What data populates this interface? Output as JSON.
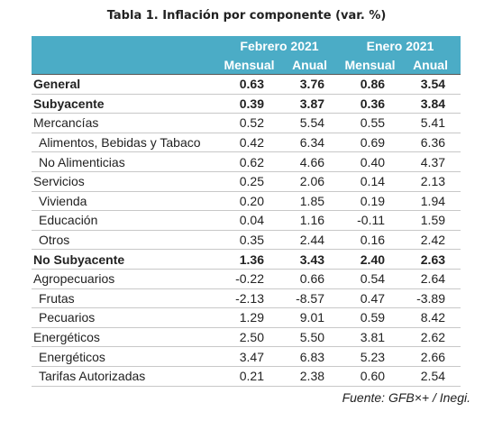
{
  "title": "Tabla 1. Inflación por componente (var. %)",
  "header": {
    "groups": [
      "Febrero 2021",
      "Enero 2021"
    ],
    "columns": [
      "Mensual",
      "Anual",
      "Mensual",
      "Anual"
    ]
  },
  "rows": [
    {
      "label": "General",
      "level": 0,
      "bold": true,
      "values": [
        "0.63",
        "3.76",
        "0.86",
        "3.54"
      ]
    },
    {
      "label": "Subyacente",
      "level": 0,
      "bold": true,
      "values": [
        "0.39",
        "3.87",
        "0.36",
        "3.84"
      ]
    },
    {
      "label": "Mercancías",
      "level": 0,
      "bold": false,
      "values": [
        "0.52",
        "5.54",
        "0.55",
        "5.41"
      ]
    },
    {
      "label": "Alimentos, Bebidas y Tabaco",
      "level": 1,
      "bold": false,
      "values": [
        "0.42",
        "6.34",
        "0.69",
        "6.36"
      ]
    },
    {
      "label": "No Alimenticias",
      "level": 1,
      "bold": false,
      "values": [
        "0.62",
        "4.66",
        "0.40",
        "4.37"
      ]
    },
    {
      "label": "Servicios",
      "level": 0,
      "bold": false,
      "values": [
        "0.25",
        "2.06",
        "0.14",
        "2.13"
      ]
    },
    {
      "label": "Vivienda",
      "level": 1,
      "bold": false,
      "values": [
        "0.20",
        "1.85",
        "0.19",
        "1.94"
      ]
    },
    {
      "label": "Educación",
      "level": 1,
      "bold": false,
      "values": [
        "0.04",
        "1.16",
        "-0.11",
        "1.59"
      ]
    },
    {
      "label": "Otros",
      "level": 1,
      "bold": false,
      "values": [
        "0.35",
        "2.44",
        "0.16",
        "2.42"
      ]
    },
    {
      "label": "No Subyacente",
      "level": 0,
      "bold": true,
      "values": [
        "1.36",
        "3.43",
        "2.40",
        "2.63"
      ]
    },
    {
      "label": "Agropecuarios",
      "level": 0,
      "bold": false,
      "values": [
        "-0.22",
        "0.66",
        "0.54",
        "2.64"
      ]
    },
    {
      "label": "Frutas",
      "level": 1,
      "bold": false,
      "values": [
        "-2.13",
        "-8.57",
        "0.47",
        "-3.89"
      ]
    },
    {
      "label": "Pecuarios",
      "level": 1,
      "bold": false,
      "values": [
        "1.29",
        "9.01",
        "0.59",
        "8.42"
      ]
    },
    {
      "label": "Energéticos",
      "level": 0,
      "bold": false,
      "values": [
        "2.50",
        "5.50",
        "3.81",
        "2.62"
      ]
    },
    {
      "label": "Energéticos",
      "level": 1,
      "bold": false,
      "values": [
        "3.47",
        "6.83",
        "5.23",
        "2.66"
      ]
    },
    {
      "label": "Tarifas Autorizadas",
      "level": 1,
      "bold": false,
      "values": [
        "0.21",
        "2.38",
        "0.60",
        "2.54"
      ]
    }
  ],
  "source": "Fuente: GFB×+ /  Inegi."
}
